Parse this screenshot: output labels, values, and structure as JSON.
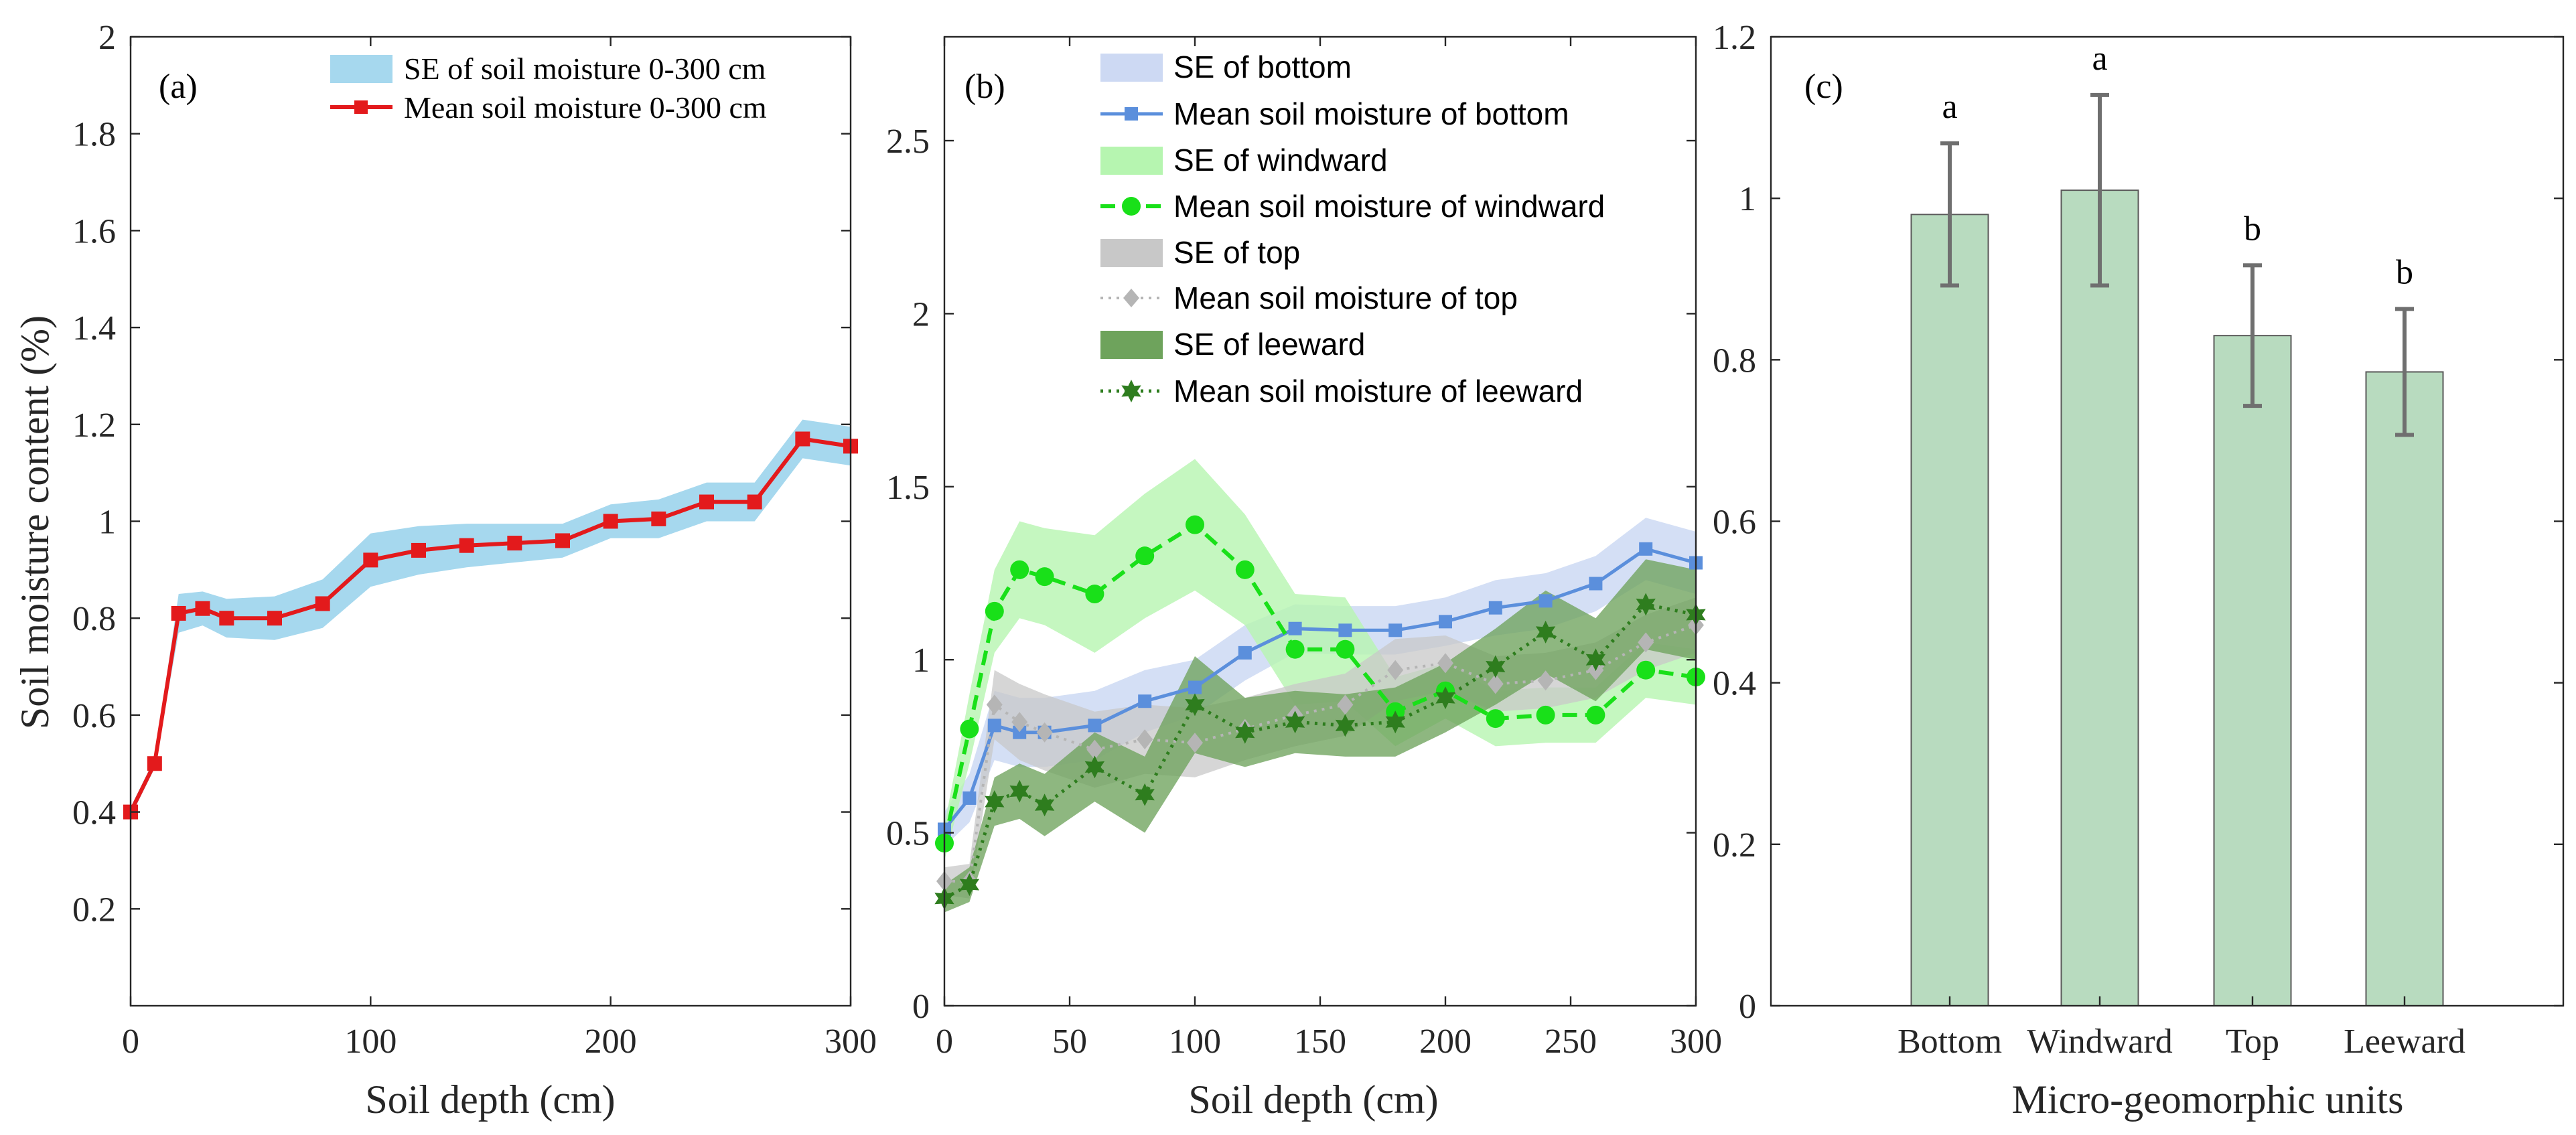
{
  "colors": {
    "red": "#e31a1c",
    "light_blue": "#a6d8ee",
    "blue": "#5b8fdc",
    "blue_band": "#cdd9f3",
    "green": "#19e019",
    "green_band": "#b6f5b0",
    "grey": "#b5b5b5",
    "grey_band": "#c8c8c8",
    "dark_green": "#2e7d1e",
    "dark_green_band": "#6ea35c",
    "bar_fill": "#b8dbbf",
    "bar_edge": "#5a5a5a",
    "error_bar": "#6f6f6f"
  },
  "chart_data": [
    {
      "id": "a",
      "type": "line",
      "panel_label": "(a)",
      "xlabel": "Soil depth (cm)",
      "ylabel": "Soil moisture content (%)",
      "xlim": [
        0,
        300
      ],
      "ylim": [
        0,
        2
      ],
      "xticks": [
        0,
        100,
        200,
        300
      ],
      "yticks": [
        0.2,
        0.4,
        0.6,
        0.8,
        1,
        1.2,
        1.4,
        1.6,
        1.8,
        2
      ],
      "x": [
        0,
        10,
        20,
        30,
        40,
        60,
        80,
        100,
        120,
        140,
        160,
        180,
        200,
        220,
        240,
        260,
        280,
        300
      ],
      "series": [
        {
          "name": "Mean soil moisture 0-300 cm",
          "band_name": "SE of soil moisture 0-300 cm",
          "values": [
            0.4,
            0.5,
            0.81,
            0.82,
            0.8,
            0.8,
            0.83,
            0.92,
            0.94,
            0.95,
            0.955,
            0.96,
            1.0,
            1.005,
            1.04,
            1.04,
            1.17,
            1.155
          ],
          "se": [
            0.01,
            0.01,
            0.04,
            0.035,
            0.04,
            0.045,
            0.05,
            0.055,
            0.05,
            0.045,
            0.04,
            0.035,
            0.035,
            0.04,
            0.04,
            0.04,
            0.04,
            0.04
          ]
        }
      ],
      "legend": [
        "SE of soil moisture 0-300 cm",
        "Mean soil moisture 0-300 cm"
      ]
    },
    {
      "id": "b",
      "type": "line",
      "panel_label": "(b)",
      "xlabel": "Soil depth (cm)",
      "xlim": [
        0,
        300
      ],
      "ylim": [
        0,
        2.8
      ],
      "xticks": [
        0,
        50,
        100,
        150,
        200,
        250,
        300
      ],
      "yticks": [
        0,
        0.5,
        1,
        1.5,
        2,
        2.5
      ],
      "x": [
        0,
        10,
        20,
        30,
        40,
        60,
        80,
        100,
        120,
        140,
        160,
        180,
        200,
        220,
        240,
        260,
        280,
        300
      ],
      "series": [
        {
          "name": "Mean soil moisture of bottom",
          "band_name": "SE of bottom",
          "values": [
            0.51,
            0.6,
            0.81,
            0.79,
            0.79,
            0.81,
            0.88,
            0.92,
            1.02,
            1.09,
            1.085,
            1.085,
            1.11,
            1.15,
            1.17,
            1.22,
            1.32,
            1.28
          ],
          "se": [
            0.05,
            0.07,
            0.1,
            0.1,
            0.1,
            0.1,
            0.09,
            0.08,
            0.08,
            0.07,
            0.07,
            0.07,
            0.07,
            0.08,
            0.08,
            0.08,
            0.09,
            0.09
          ]
        },
        {
          "name": "Mean soil moisture of windward",
          "band_name": "SE of windward",
          "values": [
            0.47,
            0.8,
            1.14,
            1.26,
            1.24,
            1.19,
            1.3,
            1.39,
            1.26,
            1.03,
            1.03,
            0.85,
            0.91,
            0.83,
            0.84,
            0.84,
            0.97,
            0.95
          ],
          "se": [
            0.05,
            0.1,
            0.12,
            0.14,
            0.14,
            0.17,
            0.18,
            0.19,
            0.16,
            0.16,
            0.15,
            0.1,
            0.08,
            0.08,
            0.08,
            0.08,
            0.08,
            0.08
          ]
        },
        {
          "name": "Mean soil moisture of top",
          "band_name": "SE of top",
          "values": [
            0.36,
            0.36,
            0.87,
            0.82,
            0.79,
            0.74,
            0.77,
            0.76,
            0.8,
            0.84,
            0.87,
            0.97,
            0.99,
            0.93,
            0.94,
            0.97,
            1.05,
            1.1
          ],
          "se": [
            0.04,
            0.05,
            0.1,
            0.11,
            0.11,
            0.11,
            0.1,
            0.1,
            0.09,
            0.09,
            0.09,
            0.09,
            0.08,
            0.08,
            0.08,
            0.08,
            0.08,
            0.08
          ]
        },
        {
          "name": "Mean soil moisture of leeward",
          "band_name": "SE of leeward",
          "values": [
            0.31,
            0.35,
            0.59,
            0.62,
            0.58,
            0.69,
            0.61,
            0.87,
            0.79,
            0.82,
            0.81,
            0.82,
            0.89,
            0.98,
            1.08,
            1.0,
            1.16,
            1.13
          ],
          "se": [
            0.04,
            0.05,
            0.07,
            0.08,
            0.09,
            0.1,
            0.11,
            0.14,
            0.1,
            0.09,
            0.09,
            0.1,
            0.1,
            0.11,
            0.12,
            0.12,
            0.13,
            0.13
          ]
        }
      ],
      "legend": [
        "SE of bottom",
        "Mean soil moisture of bottom",
        "SE of windward",
        "Mean soil moisture of windward",
        "SE of top",
        "Mean soil moisture of top",
        "SE of leeward",
        "Mean soil moisture of leeward"
      ]
    },
    {
      "id": "c",
      "type": "bar",
      "panel_label": "(c)",
      "xlabel": "Micro-geomorphic units",
      "ylim": [
        0,
        1.2
      ],
      "yticks": [
        0,
        0.2,
        0.4,
        0.6,
        0.8,
        1,
        1.2
      ],
      "categories": [
        "Bottom",
        "Windward",
        "Top",
        "Leeward"
      ],
      "values": [
        0.98,
        1.01,
        0.83,
        0.785
      ],
      "errors": [
        0.088,
        0.118,
        0.087,
        0.078
      ],
      "letters": [
        "a",
        "a",
        "b",
        "b"
      ]
    }
  ]
}
